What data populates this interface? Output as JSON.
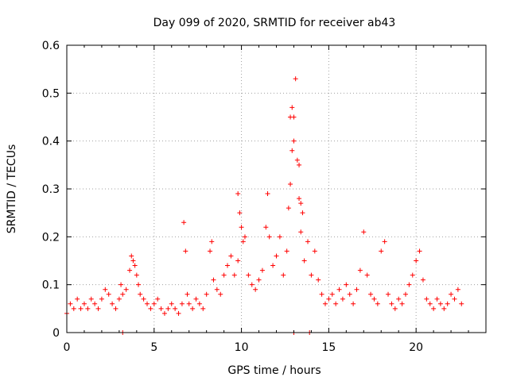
{
  "chart_data": {
    "type": "scatter",
    "title": "Day 099 of 2020, SRMTID for receiver ab43",
    "xlabel": "GPS time / hours",
    "ylabel": "SRMTID / TECUs",
    "xlim": [
      0,
      24.0
    ],
    "ylim": [
      0,
      0.6
    ],
    "xticks": [
      0,
      5,
      10,
      15,
      20
    ],
    "xtick_labels": [
      "0",
      "5",
      "10",
      "15",
      "20"
    ],
    "yticks": [
      0,
      0.1,
      0.2,
      0.3,
      0.4,
      0.5,
      0.6
    ],
    "ytick_labels": [
      "0",
      "0.1",
      "0.2",
      "0.3",
      "0.4",
      "0.5",
      "0.6"
    ],
    "grid": true,
    "marker": "plus",
    "color": "#ff0000",
    "series": [
      {
        "name": "SRMTID",
        "x": [
          0.0,
          0.2,
          0.4,
          0.6,
          0.8,
          1.0,
          1.2,
          1.4,
          1.6,
          1.8,
          2.0,
          2.2,
          2.4,
          2.6,
          2.8,
          3.0,
          3.1,
          3.2,
          3.4,
          3.6,
          3.7,
          3.8,
          3.9,
          4.0,
          4.1,
          4.2,
          4.4,
          4.6,
          4.8,
          5.0,
          5.2,
          5.4,
          5.6,
          5.8,
          6.0,
          6.2,
          6.4,
          6.6,
          6.7,
          6.8,
          6.9,
          7.0,
          7.2,
          7.4,
          7.6,
          7.8,
          8.0,
          8.2,
          8.3,
          8.4,
          8.6,
          8.8,
          9.0,
          9.2,
          9.4,
          9.6,
          9.8,
          9.9,
          10.0,
          10.1,
          10.2,
          10.4,
          10.6,
          10.8,
          11.0,
          11.2,
          11.4,
          11.5,
          11.6,
          11.8,
          12.0,
          12.2,
          12.4,
          12.6,
          12.7,
          12.8,
          12.9,
          13.0,
          13.1,
          13.2,
          13.3,
          13.4,
          13.5,
          13.6,
          13.8,
          14.0,
          14.2,
          14.4,
          14.6,
          14.8,
          15.0,
          15.2,
          15.4,
          15.6,
          15.8,
          16.0,
          16.2,
          16.4,
          16.6,
          16.8,
          17.0,
          17.2,
          17.4,
          17.6,
          17.8,
          18.0,
          18.2,
          18.4,
          18.6,
          18.8,
          19.0,
          19.2,
          19.4,
          19.6,
          19.8,
          20.0,
          20.2,
          20.4,
          20.6,
          20.8,
          21.0,
          21.2,
          21.4,
          21.6,
          21.8,
          22.0,
          22.2,
          22.4,
          22.6,
          12.8,
          12.9,
          13.0,
          13.3,
          13.4,
          9.8,
          11.5,
          3.2,
          13.0,
          13.9
        ],
        "values": [
          0.04,
          0.06,
          0.05,
          0.07,
          0.05,
          0.06,
          0.05,
          0.07,
          0.06,
          0.05,
          0.07,
          0.09,
          0.08,
          0.06,
          0.05,
          0.07,
          0.1,
          0.08,
          0.09,
          0.13,
          0.16,
          0.15,
          0.14,
          0.12,
          0.1,
          0.08,
          0.07,
          0.06,
          0.05,
          0.06,
          0.07,
          0.05,
          0.04,
          0.05,
          0.06,
          0.05,
          0.04,
          0.06,
          0.23,
          0.17,
          0.08,
          0.06,
          0.05,
          0.07,
          0.06,
          0.05,
          0.08,
          0.17,
          0.19,
          0.11,
          0.09,
          0.08,
          0.12,
          0.14,
          0.16,
          0.12,
          0.15,
          0.25,
          0.22,
          0.19,
          0.2,
          0.12,
          0.1,
          0.09,
          0.11,
          0.13,
          0.22,
          0.29,
          0.2,
          0.14,
          0.16,
          0.2,
          0.12,
          0.17,
          0.26,
          0.31,
          0.38,
          0.45,
          0.53,
          0.36,
          0.28,
          0.21,
          0.25,
          0.15,
          0.19,
          0.12,
          0.17,
          0.11,
          0.08,
          0.06,
          0.07,
          0.08,
          0.06,
          0.09,
          0.07,
          0.1,
          0.08,
          0.06,
          0.09,
          0.13,
          0.21,
          0.12,
          0.08,
          0.07,
          0.06,
          0.17,
          0.19,
          0.08,
          0.06,
          0.05,
          0.07,
          0.06,
          0.08,
          0.1,
          0.12,
          0.15,
          0.17,
          0.11,
          0.07,
          0.06,
          0.05,
          0.07,
          0.06,
          0.05,
          0.06,
          0.08,
          0.07,
          0.09,
          0.06,
          0.45,
          0.47,
          0.4,
          0.35,
          0.27,
          0.29,
          0.29,
          0.0,
          0.0,
          0.0
        ]
      }
    ]
  }
}
